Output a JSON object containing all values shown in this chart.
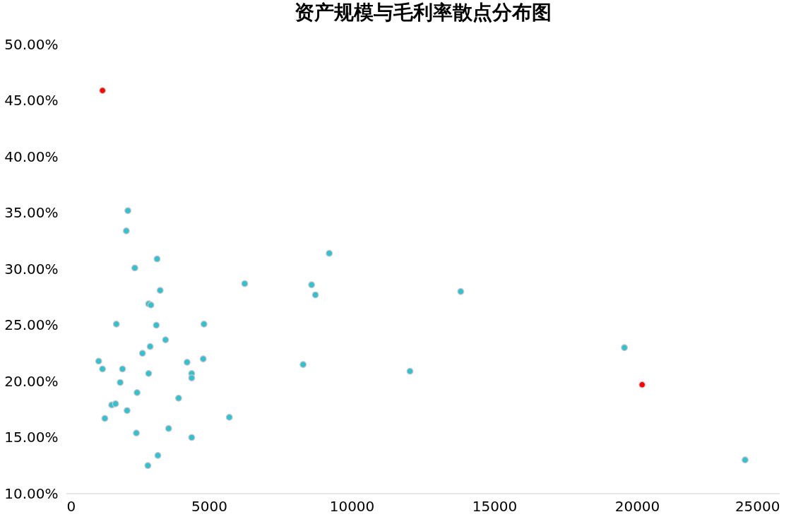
{
  "chart_data": {
    "type": "scatter",
    "title": "资产规模与毛利率散点分布图",
    "series": [
      {
        "color": "#36bfcf",
        "x": [
          2155,
          2101,
          2398,
          3179,
          3287,
          2883,
          2963,
          1751,
          3152,
          4822,
          3475,
          2936,
          2667,
          1131,
          1266,
          1967,
          2883,
          4230,
          4795,
          4391,
          4391,
          1886,
          2478,
          3933,
          1589,
          1724,
          2128,
          1347,
          2452,
          5711,
          3583,
          4391,
          3206,
          2856,
          6250,
          8594,
          8728,
          9213,
          8297,
          12042,
          13820,
          19558,
          23788
        ],
        "values": [
          35.2,
          33.4,
          30.1,
          30.9,
          28.1,
          26.9,
          26.8,
          25.1,
          25.0,
          25.1,
          23.7,
          23.1,
          22.5,
          21.8,
          21.1,
          21.1,
          20.7,
          21.7,
          22.0,
          20.7,
          20.3,
          19.9,
          19.0,
          18.5,
          17.9,
          18.0,
          17.4,
          16.7,
          15.4,
          16.8,
          15.8,
          15.0,
          13.4,
          12.5,
          28.7,
          28.6,
          27.7,
          31.4,
          21.5,
          20.9,
          28.0,
          23.0,
          13.0
        ]
      },
      {
        "color": "#ff0000",
        "x": [
          1266,
          20178
        ],
        "values": [
          45.9,
          19.7
        ]
      }
    ],
    "xlim": [
      0,
      25000
    ],
    "xticks": [
      0,
      5000,
      10000,
      15000,
      20000,
      25000
    ],
    "ylim": [
      10,
      50
    ],
    "yticks": [
      {
        "value": 10,
        "label": "10.00%"
      },
      {
        "value": 15,
        "label": "15.00%"
      },
      {
        "value": 20,
        "label": "20.00%"
      },
      {
        "value": 25,
        "label": "25.00%"
      },
      {
        "value": 30,
        "label": "30.00%"
      },
      {
        "value": 35,
        "label": "35.00%"
      },
      {
        "value": 40,
        "label": "40.00%"
      },
      {
        "value": 45,
        "label": "45.00%"
      },
      {
        "value": 50,
        "label": "50.00%"
      }
    ],
    "grid": false,
    "marker": "circle"
  }
}
